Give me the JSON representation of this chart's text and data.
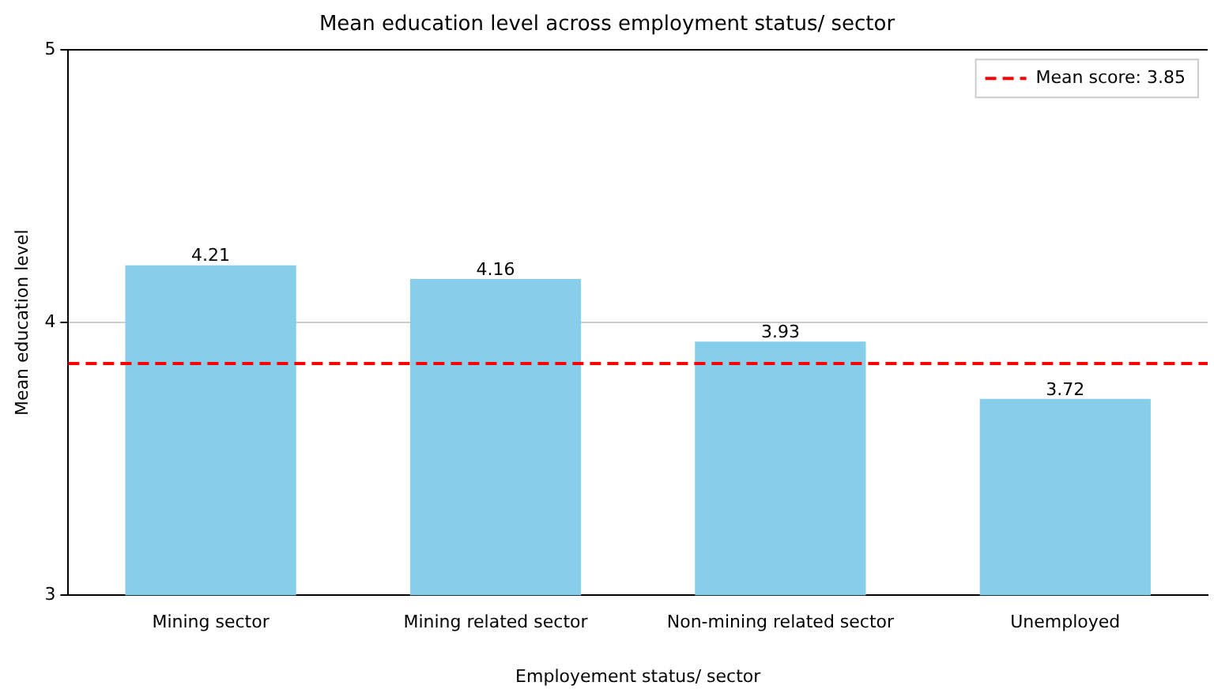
{
  "chart_data": {
    "type": "bar",
    "title": "Mean education level across employment status/ sector",
    "xlabel": "Employement status/ sector",
    "ylabel": "Mean education level",
    "categories": [
      "Mining sector",
      "Mining related sector",
      "Non-mining related sector",
      "Unemployed"
    ],
    "values": [
      4.21,
      4.16,
      3.93,
      3.72
    ],
    "color": "#87ceeb",
    "data_labels": true,
    "ylim": [
      3,
      5
    ],
    "yticks": [
      3,
      4,
      5
    ],
    "grid": "y",
    "legend": "top right",
    "ref_lines": [
      {
        "axis": "y",
        "value": 3.85,
        "label": "Mean score: 3.85",
        "color": "#ff0000",
        "line_style": "dashed"
      }
    ]
  }
}
